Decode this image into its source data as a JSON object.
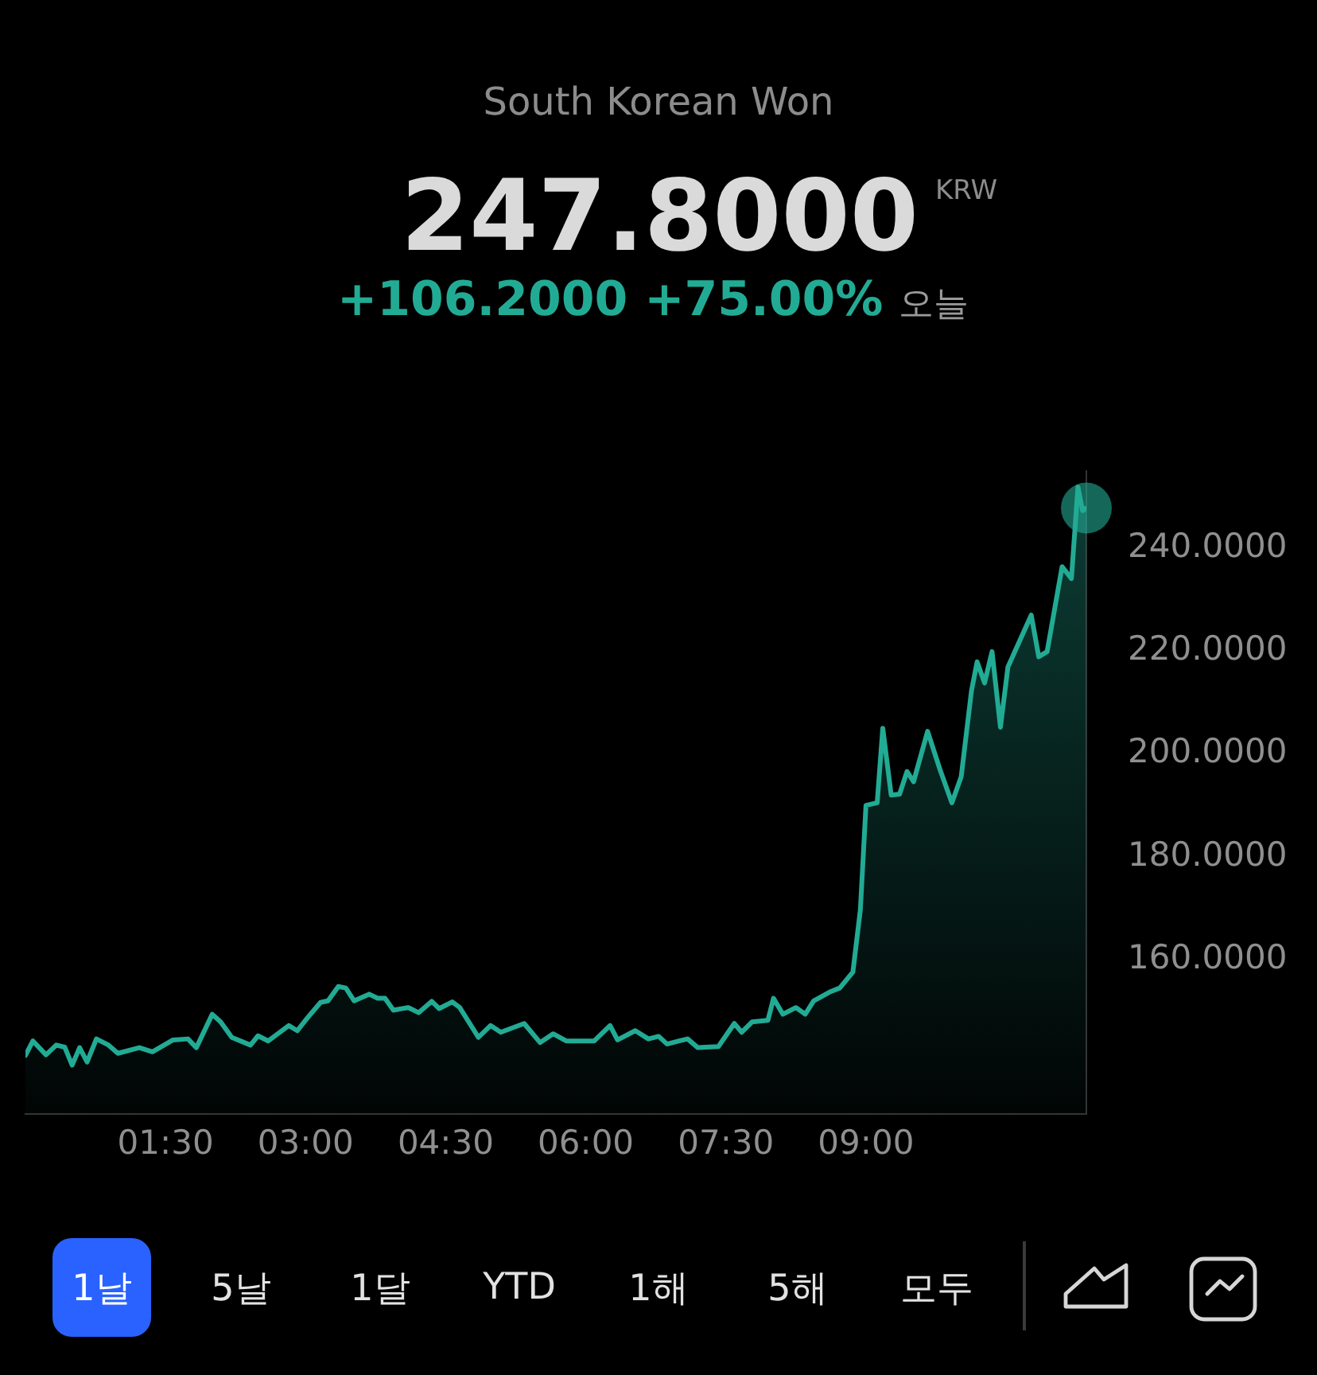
{
  "chart_data": {
    "type": "area",
    "subtitle": "South Korean Won",
    "annotations": [
      "247.8000",
      "KRW",
      "+106.2000 +75.00%",
      "오늘",
      "1날",
      "5날",
      "1달",
      "YTD",
      "1해",
      "5해",
      "모두"
    ],
    "x": [
      0.0,
      0.08,
      0.22,
      0.33,
      0.42,
      0.5,
      0.58,
      0.66,
      0.76,
      0.89,
      0.99,
      1.22,
      1.36,
      1.58,
      1.74,
      1.83,
      2.0,
      2.09,
      2.21,
      2.41,
      2.49,
      2.6,
      2.82,
      2.91,
      3.02,
      3.16,
      3.24,
      3.35,
      3.43,
      3.52,
      3.68,
      3.77,
      3.85,
      3.94,
      4.1,
      4.21,
      4.35,
      4.43,
      4.57,
      4.65,
      4.85,
      4.98,
      5.09,
      5.34,
      5.51,
      5.65,
      5.79,
      6.09,
      6.26,
      6.34,
      6.53,
      6.67,
      6.78,
      6.87,
      7.0,
      7.09,
      7.2,
      7.42,
      7.59,
      7.67,
      7.78,
      7.95,
      8.01,
      8.11,
      8.25,
      8.35,
      8.44,
      8.61,
      8.72,
      8.86,
      8.94,
      9.0,
      9.12,
      9.18,
      9.27,
      9.36,
      9.44,
      9.51,
      9.66,
      9.79,
      9.92,
      10.02,
      10.13,
      10.19,
      10.27,
      10.35,
      10.44,
      10.52,
      10.77,
      10.85,
      10.94,
      11.1,
      11.2,
      11.27,
      11.32,
      11.36
    ],
    "series": [
      {
        "color": "#22ab94",
        "values": [
          141.4,
          144.2,
          141.5,
          143.4,
          143.0,
          139.5,
          142.9,
          140.1,
          144.6,
          143.4,
          141.8,
          142.9,
          142.1,
          144.4,
          144.6,
          142.9,
          149.4,
          147.9,
          144.9,
          143.4,
          145.2,
          144.2,
          147.2,
          146.2,
          148.7,
          151.7,
          152.0,
          154.8,
          154.5,
          152.0,
          153.3,
          152.5,
          152.5,
          150.2,
          150.7,
          149.7,
          151.9,
          150.5,
          151.8,
          150.7,
          144.9,
          147.2,
          145.9,
          147.6,
          143.9,
          145.6,
          144.2,
          144.2,
          147.2,
          144.4,
          146.2,
          144.6,
          145.1,
          143.6,
          144.2,
          144.6,
          142.9,
          143.1,
          147.6,
          145.9,
          147.9,
          148.2,
          152.5,
          149.4,
          150.7,
          149.4,
          152.0,
          153.7,
          154.5,
          157.6,
          169.7,
          190.0,
          190.5,
          205.0,
          192.0,
          192.2,
          196.6,
          194.6,
          204.4,
          197.1,
          190.5,
          195.6,
          212.3,
          217.9,
          213.8,
          219.9,
          205.2,
          216.9,
          227.0,
          218.9,
          219.9,
          236.4,
          234.1,
          251.9,
          247.3,
          247.8
        ]
      },
      {
        "type": "scatter",
        "x": [
          11.36
        ],
        "color": "#22ab94",
        "values": [
          247.8
        ]
      }
    ],
    "xlim": [
      0,
      11.36
    ],
    "xticks": [
      {
        "value": 1.5,
        "label": "01:30"
      },
      {
        "value": 3,
        "label": "03:00"
      },
      {
        "value": 4.5,
        "label": "04:30"
      },
      {
        "value": 6,
        "label": "06:00"
      },
      {
        "value": 7.5,
        "label": "07:30"
      },
      {
        "value": 9,
        "label": "09:00"
      }
    ],
    "ylim": [
      130,
      255
    ],
    "yticks": [
      {
        "value": 160,
        "label": "160.0000"
      },
      {
        "value": 180,
        "label": "180.0000"
      },
      {
        "value": 200,
        "label": "200.0000"
      },
      {
        "value": 220,
        "label": "220.0000"
      },
      {
        "value": 240,
        "label": "240.0000"
      }
    ]
  }
}
